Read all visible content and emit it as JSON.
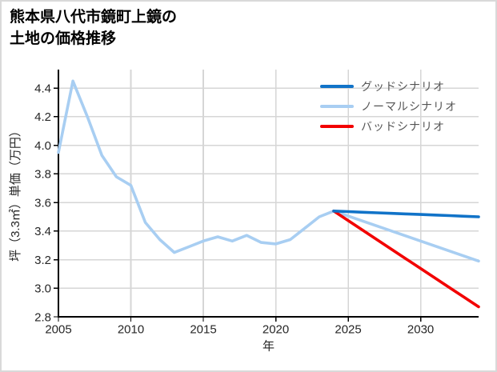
{
  "window": {
    "background": "#ffffff",
    "border_color": "#d9d9d9"
  },
  "title": {
    "line1": "熊本県八代市鏡町上鏡の",
    "line2": "土地の価格推移"
  },
  "chart_data": {
    "type": "line",
    "title": "熊本県八代市鏡町上鏡の土地の価格推移",
    "xlabel": "年",
    "ylabel": "坪（3.3㎡）単価（万円）",
    "xlim": [
      2005,
      2034
    ],
    "ylim": [
      2.8,
      4.53
    ],
    "x_ticks": [
      2005,
      2010,
      2015,
      2020,
      2025,
      2030
    ],
    "y_ticks": [
      2.8,
      3.0,
      3.2,
      3.4,
      3.6,
      3.8,
      4.0,
      4.2,
      4.4
    ],
    "grid": true,
    "legend_position": "upper right",
    "colors": {
      "grid": "#d6d6d6",
      "spine": "#000000",
      "tick_label": "#262626",
      "axis_label": "#262626",
      "legend_text": "#555555"
    },
    "series": [
      {
        "key": "good",
        "name": "グッドシナリオ",
        "color": "#1173c8",
        "x": [
          2024,
          2025,
          2026,
          2027,
          2028,
          2029,
          2030,
          2031,
          2032,
          2033,
          2034
        ],
        "values": [
          3.54,
          3.536,
          3.532,
          3.528,
          3.524,
          3.52,
          3.516,
          3.512,
          3.508,
          3.504,
          3.5
        ]
      },
      {
        "key": "normal",
        "name": "ノーマルシナリオ",
        "color": "#a8cef2",
        "x": [
          2005,
          2006,
          2007,
          2008,
          2009,
          2010,
          2011,
          2012,
          2013,
          2014,
          2015,
          2016,
          2017,
          2018,
          2019,
          2020,
          2021,
          2022,
          2023,
          2024,
          2025,
          2026,
          2027,
          2028,
          2029,
          2030,
          2031,
          2032,
          2033,
          2034
        ],
        "values": [
          3.95,
          4.45,
          4.2,
          3.93,
          3.78,
          3.72,
          3.46,
          3.34,
          3.25,
          3.29,
          3.33,
          3.36,
          3.33,
          3.37,
          3.32,
          3.31,
          3.34,
          3.42,
          3.5,
          3.54,
          3.505,
          3.47,
          3.435,
          3.4,
          3.365,
          3.33,
          3.295,
          3.26,
          3.225,
          3.19
        ]
      },
      {
        "key": "bad",
        "name": "バッドシナリオ",
        "color": "#f20000",
        "x": [
          2024,
          2025,
          2026,
          2027,
          2028,
          2029,
          2030,
          2031,
          2032,
          2033,
          2034
        ],
        "values": [
          3.54,
          3.473,
          3.406,
          3.339,
          3.272,
          3.205,
          3.138,
          3.071,
          3.004,
          2.937,
          2.87
        ]
      }
    ]
  }
}
